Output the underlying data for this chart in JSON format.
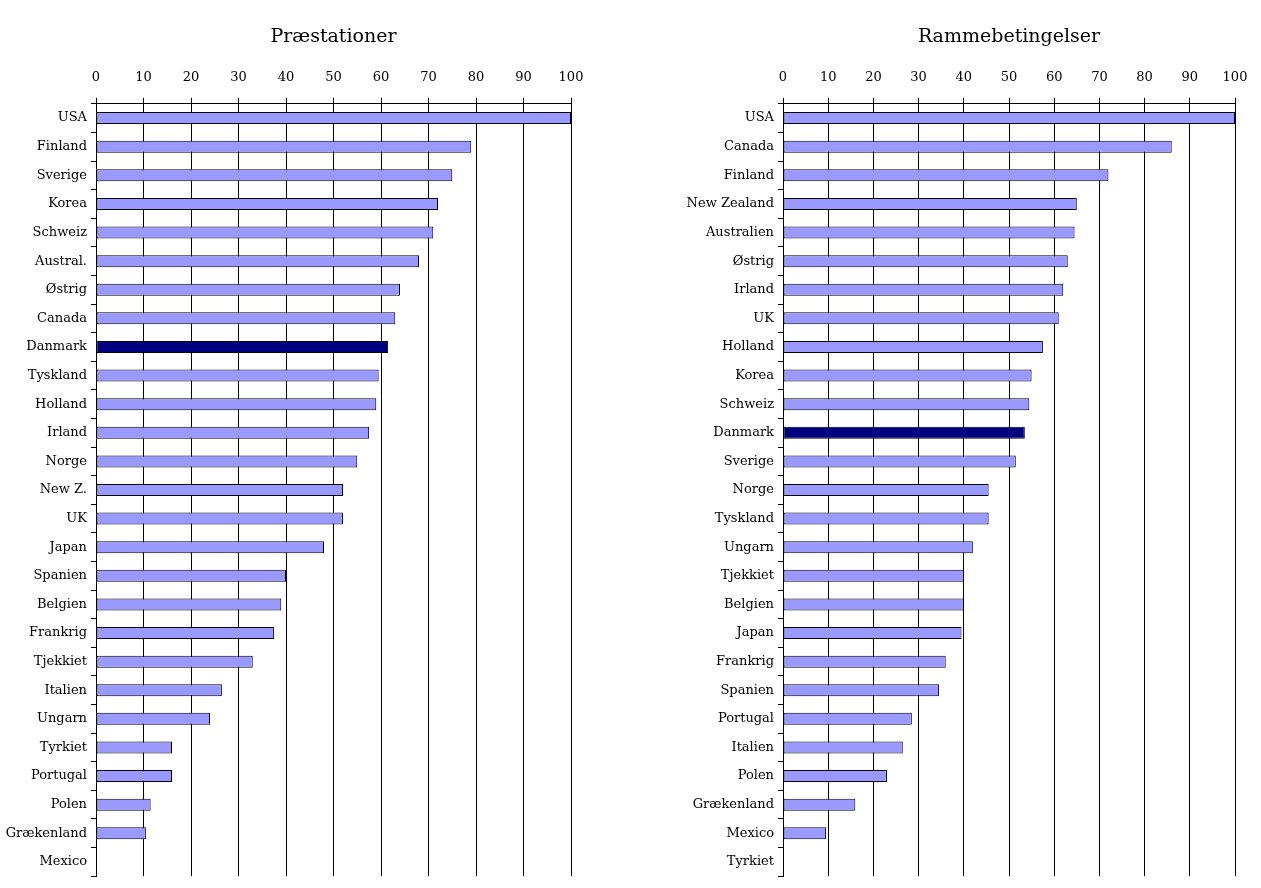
{
  "chart_data": [
    {
      "type": "bar",
      "orientation": "horizontal",
      "title": "Præstationer",
      "categories": [
        "USA",
        "Finland",
        "Sverige",
        "Korea",
        "Schweiz",
        "Austral.",
        "Østrig",
        "Canada",
        "Danmark",
        "Tyskland",
        "Holland",
        "Irland",
        "Norge",
        "New Z.",
        "UK",
        "Japan",
        "Spanien",
        "Belgien",
        "Frankrig",
        "Tjekkiet",
        "Italien",
        "Ungarn",
        "Tyrkiet",
        "Portugal",
        "Polen",
        "Grækenland",
        "Mexico"
      ],
      "values": [
        100,
        79,
        75,
        72,
        71,
        68,
        64,
        63,
        61.5,
        59.5,
        59,
        57.5,
        55,
        52,
        52,
        48,
        40,
        39,
        37.5,
        33,
        26.5,
        24,
        16,
        16,
        11.5,
        10.5,
        0
      ],
      "colors": [
        "#9999ff",
        "#9999ff",
        "#9999ff",
        "#9999ff",
        "#9999ff",
        "#9999ff",
        "#9999ff",
        "#9999ff",
        "#000080",
        "#9999ff",
        "#9999ff",
        "#9999ff",
        "#9999ff",
        "#9999ff",
        "#9999ff",
        "#9999ff",
        "#9999ff",
        "#9999ff",
        "#9999ff",
        "#9999ff",
        "#9999ff",
        "#9999ff",
        "#9999ff",
        "#9999ff",
        "#9999ff",
        "#9999ff",
        "#9999ff"
      ],
      "xlim": [
        0,
        100
      ],
      "xticks": [
        0,
        10,
        20,
        30,
        40,
        50,
        60,
        70,
        80,
        90,
        100
      ],
      "grid": "x"
    },
    {
      "type": "bar",
      "orientation": "horizontal",
      "title": "Rammebetingelser",
      "categories": [
        "USA",
        "Canada",
        "Finland",
        "New Zealand",
        "Australien",
        "Østrig",
        "Irland",
        "UK",
        "Holland",
        "Korea",
        "Schweiz",
        "Danmark",
        "Sverige",
        "Norge",
        "Tyskland",
        "Ungarn",
        "Tjekkiet",
        "Belgien",
        "Japan",
        "Frankrig",
        "Spanien",
        "Portugal",
        "Italien",
        "Polen",
        "Grækenland",
        "Mexico",
        "Tyrkiet"
      ],
      "values": [
        100,
        86,
        72,
        65,
        64.5,
        63,
        62,
        61,
        57.5,
        55,
        54.5,
        53.5,
        51.5,
        45.5,
        45.5,
        42,
        40,
        40,
        39.5,
        36,
        34.5,
        28.5,
        26.5,
        23,
        16,
        9.5,
        0
      ],
      "colors": [
        "#9999ff",
        "#9999ff",
        "#9999ff",
        "#9999ff",
        "#9999ff",
        "#9999ff",
        "#9999ff",
        "#9999ff",
        "#9999ff",
        "#9999ff",
        "#9999ff",
        "#000080",
        "#9999ff",
        "#9999ff",
        "#9999ff",
        "#9999ff",
        "#9999ff",
        "#9999ff",
        "#9999ff",
        "#9999ff",
        "#9999ff",
        "#9999ff",
        "#9999ff",
        "#9999ff",
        "#9999ff",
        "#9999ff",
        "#9999ff"
      ],
      "xlim": [
        0,
        100
      ],
      "xticks": [
        0,
        10,
        20,
        30,
        40,
        50,
        60,
        70,
        80,
        90,
        100
      ],
      "grid": "x"
    }
  ]
}
